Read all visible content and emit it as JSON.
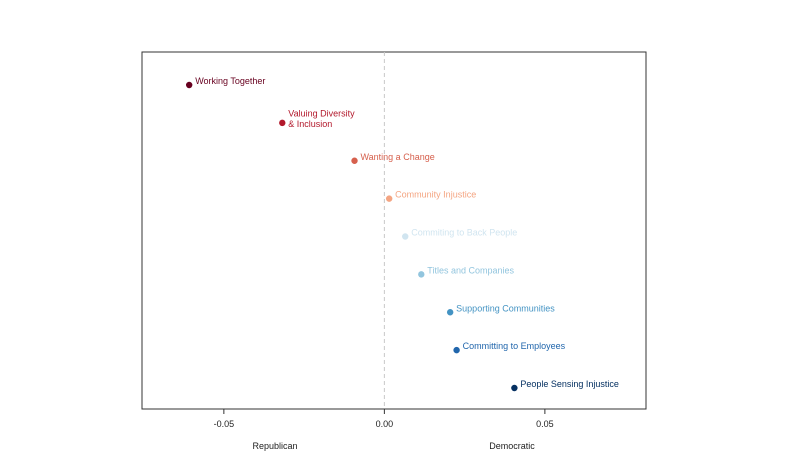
{
  "chart_data": {
    "type": "scatter",
    "xlim": [
      -0.0755,
      0.0815
    ],
    "x_ticks": [
      {
        "value": -0.05,
        "label": "-0.05"
      },
      {
        "value": 0.0,
        "label": "0.00"
      },
      {
        "value": 0.05,
        "label": "0.05"
      }
    ],
    "zero_reference_line": true,
    "grid": false,
    "group_labels": {
      "left": "Republican",
      "right": "Democratic"
    },
    "points": [
      {
        "label": "Working Together",
        "x": -0.0608,
        "color": "#67001f"
      },
      {
        "label": "Valuing Diversity\n& Inclusion",
        "x": -0.0318,
        "color": "#b2182b"
      },
      {
        "label": "Wanting a Change",
        "x": -0.0093,
        "color": "#d6604d"
      },
      {
        "label": "Community Injustice",
        "x": 0.0015,
        "color": "#f4a582"
      },
      {
        "label": "Commiting to Back People",
        "x": 0.0065,
        "color": "#d1e5f0"
      },
      {
        "label": "Titles and Companies",
        "x": 0.0115,
        "color": "#92c5de"
      },
      {
        "label": "Supporting Communities",
        "x": 0.0205,
        "color": "#4393c3"
      },
      {
        "label": "Committing to Employees",
        "x": 0.0225,
        "color": "#2166ac"
      },
      {
        "label": "People Sensing Injustice",
        "x": 0.0405,
        "color": "#053061"
      }
    ]
  }
}
